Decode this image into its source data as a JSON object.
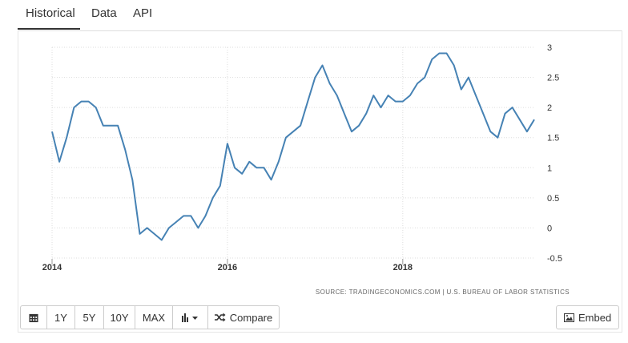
{
  "tabs": [
    {
      "label": "Historical",
      "active": true
    },
    {
      "label": "Data",
      "active": false
    },
    {
      "label": "API",
      "active": false
    }
  ],
  "toolbar": {
    "calendar_icon": "calendar-icon",
    "ranges": [
      "1Y",
      "5Y",
      "10Y",
      "MAX"
    ],
    "chart_type_icon": "bar-chart-icon",
    "compare_icon": "shuffle-icon",
    "compare_label": "Compare",
    "embed_icon": "image-icon",
    "embed_label": "Embed"
  },
  "source_text": "SOURCE: TRADINGECONOMICS.COM | U.S. BUREAU OF LABOR STATISTICS",
  "colors": {
    "line": "#4682b4",
    "grid": "#dddddd",
    "text": "#333333"
  },
  "chart_data": {
    "type": "line",
    "title": "",
    "xlabel": "",
    "ylabel": "",
    "x_ticks": [
      "2014",
      "2016",
      "2018"
    ],
    "y_ticks": [
      "3",
      "2.5",
      "2",
      "1.5",
      "1",
      "0.5",
      "0",
      "-0.5"
    ],
    "ylim": [
      -0.5,
      3
    ],
    "y_axis_position": "right",
    "grid": true,
    "x": [
      "2014-01",
      "2014-02",
      "2014-03",
      "2014-04",
      "2014-05",
      "2014-06",
      "2014-07",
      "2014-08",
      "2014-09",
      "2014-10",
      "2014-11",
      "2014-12",
      "2015-01",
      "2015-02",
      "2015-03",
      "2015-04",
      "2015-05",
      "2015-06",
      "2015-07",
      "2015-08",
      "2015-09",
      "2015-10",
      "2015-11",
      "2015-12",
      "2016-01",
      "2016-02",
      "2016-03",
      "2016-04",
      "2016-05",
      "2016-06",
      "2016-07",
      "2016-08",
      "2016-09",
      "2016-10",
      "2016-11",
      "2016-12",
      "2017-01",
      "2017-02",
      "2017-03",
      "2017-04",
      "2017-05",
      "2017-06",
      "2017-07",
      "2017-08",
      "2017-09",
      "2017-10",
      "2017-11",
      "2017-12",
      "2018-01",
      "2018-02",
      "2018-03",
      "2018-04",
      "2018-05",
      "2018-06",
      "2018-07",
      "2018-08",
      "2018-09",
      "2018-10",
      "2018-11",
      "2018-12",
      "2019-01",
      "2019-02",
      "2019-03",
      "2019-04",
      "2019-05",
      "2019-06",
      "2019-07"
    ],
    "series": [
      {
        "values": [
          1.6,
          1.1,
          1.5,
          2.0,
          2.1,
          2.1,
          2.0,
          1.7,
          1.7,
          1.7,
          1.3,
          0.8,
          -0.1,
          0.0,
          -0.1,
          -0.2,
          0.0,
          0.1,
          0.2,
          0.2,
          0.0,
          0.2,
          0.5,
          0.7,
          1.4,
          1.0,
          0.9,
          1.1,
          1.0,
          1.0,
          0.8,
          1.1,
          1.5,
          1.6,
          1.7,
          2.1,
          2.5,
          2.7,
          2.4,
          2.2,
          1.9,
          1.6,
          1.7,
          1.9,
          2.2,
          2.0,
          2.2,
          2.1,
          2.1,
          2.2,
          2.4,
          2.5,
          2.8,
          2.9,
          2.9,
          2.7,
          2.3,
          2.5,
          2.2,
          1.9,
          1.6,
          1.5,
          1.9,
          2.0,
          1.8,
          1.6,
          1.8
        ]
      }
    ]
  }
}
